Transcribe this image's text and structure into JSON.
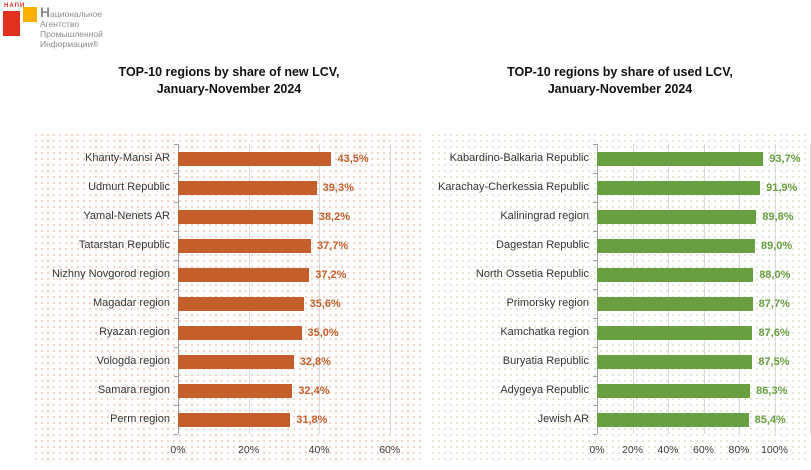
{
  "logo": {
    "napi_text": "НАПИ",
    "org_name_lines": [
      "Национальное",
      "Агентство",
      "Промышленной",
      "Информации®"
    ],
    "colors": {
      "red": "#e0301e",
      "orange": "#f9b000",
      "text_gray": "#8c8c8c"
    }
  },
  "chart_data": [
    {
      "type": "bar",
      "orientation": "horizontal",
      "title_lines": [
        "TOP-10 regions by share of new LCV,",
        "January-November 2024"
      ],
      "categories": [
        "Khanty-Mansi AR",
        "Udmurt Republic",
        "Yamal-Nenets AR",
        "Tatarstan Republic",
        "Nizhny Novgorod region",
        "Magadar region",
        "Ryazan region",
        "Vologda region",
        "Samara region",
        "Perm region"
      ],
      "values": [
        43.5,
        39.3,
        38.2,
        37.7,
        37.2,
        35.6,
        35.0,
        32.8,
        32.4,
        31.8
      ],
      "value_labels": [
        "43,5%",
        "39,3%",
        "38,2%",
        "37,7%",
        "37,2%",
        "35,6%",
        "35,0%",
        "32,8%",
        "32,4%",
        "31,8%"
      ],
      "xlim": [
        0,
        70
      ],
      "tick_values": [
        0,
        20,
        40,
        60
      ],
      "tick_labels": [
        "0%",
        "20%",
        "40%",
        "60%"
      ],
      "grid_values": [
        20,
        40,
        60
      ],
      "bar_color": "#c45f2b",
      "value_label_color": "#c45f2b",
      "grid": true,
      "legend": "none"
    },
    {
      "type": "bar",
      "orientation": "horizontal",
      "title_lines": [
        "TOP-10 regions by share of used LCV,",
        "January-November 2024"
      ],
      "categories": [
        "Kabardino-Balkaria Republic",
        "Karachay-Cherkessia Republic",
        "Kaliningrad region",
        "Dagestan Republic",
        "North Ossetia Republic",
        "Primorsky region",
        "Kamchatka region",
        "Buryatia Republic",
        "Adygeya Republic",
        "Jewish AR"
      ],
      "values": [
        93.7,
        91.9,
        89.8,
        89.0,
        88.0,
        87.7,
        87.6,
        87.5,
        86.3,
        85.4
      ],
      "value_labels": [
        "93,7%",
        "91,9%",
        "89,8%",
        "89,0%",
        "88,0%",
        "87,7%",
        "87,6%",
        "87,5%",
        "86,3%",
        "85,4%"
      ],
      "xlim": [
        0,
        120
      ],
      "tick_values": [
        0,
        20,
        40,
        60,
        80,
        100
      ],
      "tick_labels": [
        "0%",
        "20%",
        "40%",
        "60%",
        "80%",
        "100%"
      ],
      "grid_values": [
        20,
        40,
        60,
        80,
        100,
        120
      ],
      "bar_color": "#699f41",
      "value_label_color": "#699f41",
      "grid": true,
      "legend": "none"
    }
  ]
}
